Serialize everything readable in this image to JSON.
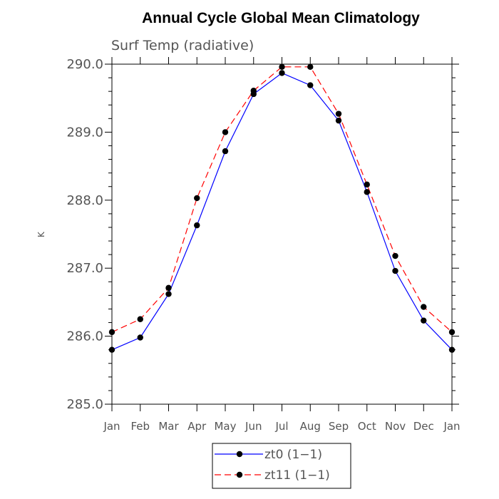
{
  "chart_data": {
    "type": "line",
    "title": "Annual Cycle Global Mean Climatology",
    "subtitle": "Surf Temp (radiative)",
    "xlabel": "",
    "ylabel": "K",
    "categories": [
      "Jan",
      "Feb",
      "Mar",
      "Apr",
      "May",
      "Jun",
      "Jul",
      "Aug",
      "Sep",
      "Oct",
      "Nov",
      "Dec",
      "Jan"
    ],
    "ylim": [
      285.0,
      290.0
    ],
    "yticks": [
      "285.0",
      "286.0",
      "287.0",
      "288.0",
      "289.0",
      "290.0"
    ],
    "series": [
      {
        "name": "zt0 (1−1)",
        "color": "#0000ff",
        "dash": "solid",
        "values": [
          285.8,
          285.98,
          286.62,
          287.63,
          288.72,
          289.56,
          289.87,
          289.69,
          289.17,
          288.12,
          286.96,
          286.23,
          285.8
        ]
      },
      {
        "name": "zt11 (1−1)",
        "color": "#ff0000",
        "dash": "dashed",
        "values": [
          286.06,
          286.25,
          286.71,
          288.03,
          289.0,
          289.61,
          289.96,
          289.96,
          289.27,
          288.23,
          287.18,
          286.43,
          286.06
        ]
      }
    ],
    "legend_position": "bottom-center",
    "marker": "filled-circle",
    "marker_color": "#000000"
  }
}
